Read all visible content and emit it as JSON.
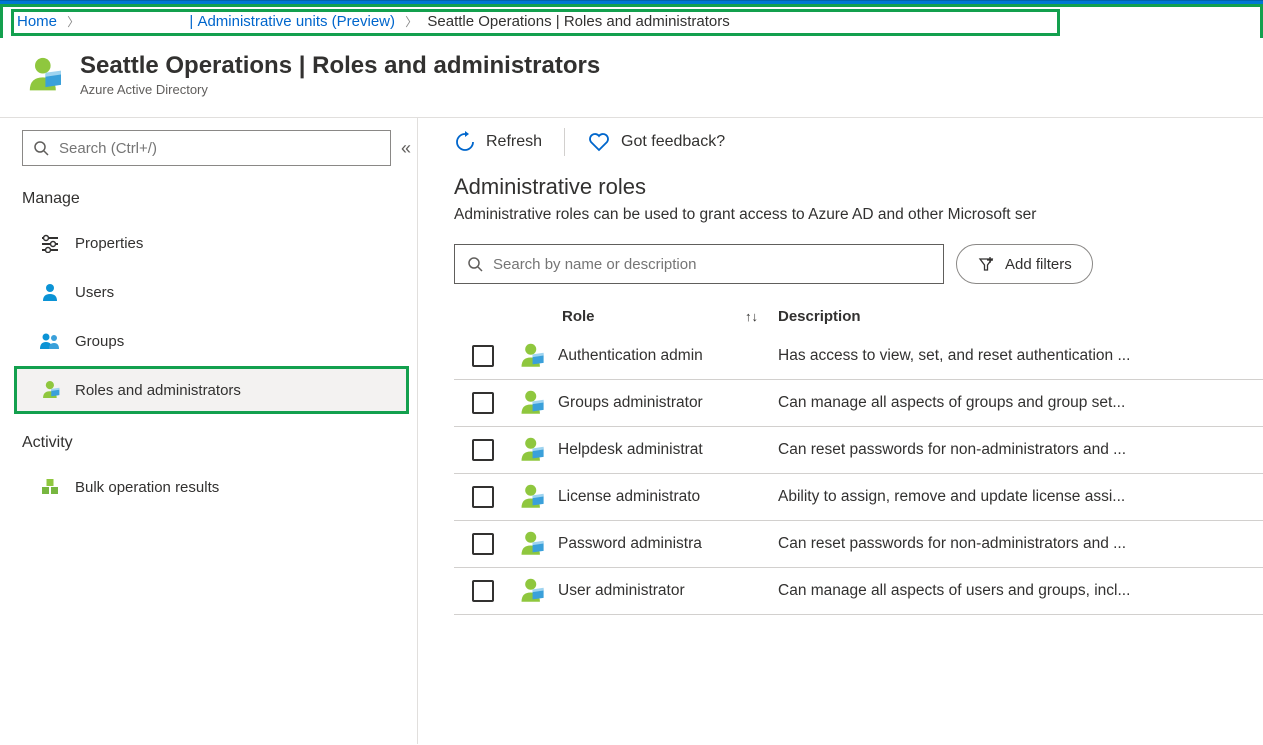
{
  "colors": {
    "highlight": "#13a04e",
    "link": "#0066cc",
    "text": "#323130",
    "subtext": "#605e5c",
    "border": "#d2d0ce",
    "topbar": "#0078d4"
  },
  "breadcrumb": {
    "home": "Home",
    "mid": "| Administrative units (Preview)",
    "current": "Seattle Operations | Roles and administrators"
  },
  "header": {
    "title": "Seattle Operations | Roles and administrators",
    "subtitle": "Azure Active Directory"
  },
  "sidebar": {
    "search_placeholder": "Search (Ctrl+/)",
    "groups": [
      {
        "title": "Manage",
        "items": [
          {
            "icon": "properties-icon",
            "label": "Properties",
            "selected": false
          },
          {
            "icon": "user-icon",
            "label": "Users",
            "selected": false
          },
          {
            "icon": "groups-icon",
            "label": "Groups",
            "selected": false
          },
          {
            "icon": "role-icon",
            "label": "Roles and administrators",
            "selected": true
          }
        ]
      },
      {
        "title": "Activity",
        "items": [
          {
            "icon": "bulk-icon",
            "label": "Bulk operation results",
            "selected": false
          }
        ]
      }
    ]
  },
  "toolbar": {
    "refresh": "Refresh",
    "feedback": "Got feedback?"
  },
  "main": {
    "heading": "Administrative roles",
    "description": "Administrative roles can be used to grant access to Azure AD and other Microsoft ser",
    "search_placeholder": "Search by name or description",
    "add_filters": "Add filters",
    "columns": {
      "role": "Role",
      "description": "Description"
    },
    "rows": [
      {
        "role": "Authentication admin",
        "desc": "Has access to view, set, and reset authentication ..."
      },
      {
        "role": "Groups administrator",
        "desc": "Can manage all aspects of groups and group set..."
      },
      {
        "role": "Helpdesk administrat",
        "desc": "Can reset passwords for non-administrators and ..."
      },
      {
        "role": "License administrato",
        "desc": "Ability to assign, remove and update license assi..."
      },
      {
        "role": "Password administra",
        "desc": "Can reset passwords for non-administrators and ..."
      },
      {
        "role": "User administrator",
        "desc": "Can manage all aspects of users and groups, incl..."
      }
    ]
  }
}
